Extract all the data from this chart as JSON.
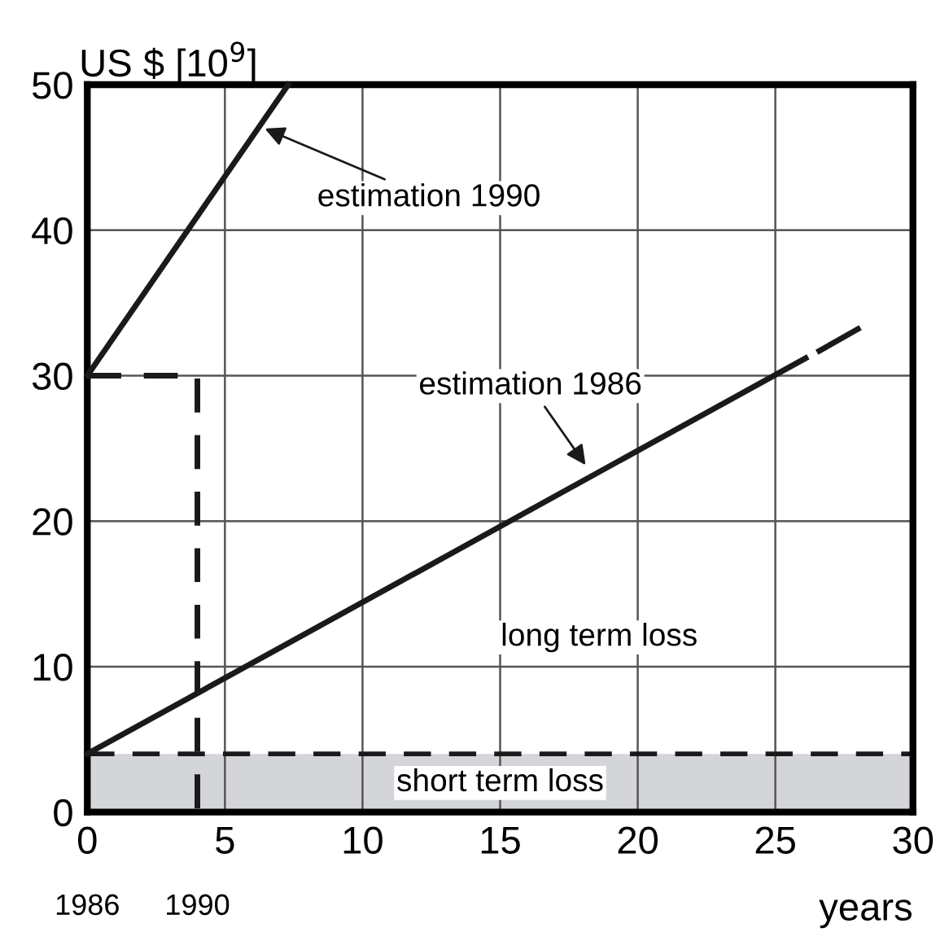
{
  "chart_data": {
    "type": "line",
    "ylabel": "US $ [10$^{9}$]",
    "xlabel": "years",
    "xlim": [
      0,
      30
    ],
    "xticks": [
      0,
      5,
      10,
      15,
      20,
      25,
      30
    ],
    "ylim": [
      0,
      50
    ],
    "yticks": [
      0,
      10,
      20,
      30,
      40,
      50
    ],
    "x2lim": [
      1986,
      2016
    ],
    "x2ticks": [
      1986,
      1990
    ],
    "grid": true,
    "marker": "none",
    "series": [
      {
        "color": "#1a1a1a",
        "x": [
          0,
          7.3
        ],
        "values": [
          30,
          50
        ],
        "line_style": "solid"
      },
      {
        "color": "#1a1a1a",
        "x": [
          0,
          26.1
        ],
        "values": [
          4,
          31.2
        ],
        "line_style": "solid"
      },
      {
        "color": "#1a1a1a",
        "x": [
          26.6,
          28
        ],
        "values": [
          31.7,
          33.2
        ],
        "line_style": "solid"
      },
      {
        "color": "#1a1a1a",
        "x": [
          0,
          4,
          4
        ],
        "values": [
          30,
          30,
          0
        ],
        "line_style": "dashed"
      }
    ],
    "ref_lines": [
      {
        "axis": "y",
        "value": 4,
        "color": "#1a1a1a",
        "line_style": "dashed"
      }
    ],
    "bands": [
      {
        "axis": "y",
        "from": 0,
        "to": 4,
        "label": "short term loss",
        "color": "#d4d5d9"
      }
    ],
    "annotations": [
      {
        "text": "estimation 1990",
        "x": 6.3,
        "y": 47.1
      },
      {
        "text": "estimation 1986",
        "x": 18.2,
        "y": 23.6
      },
      "long term loss"
    ]
  }
}
